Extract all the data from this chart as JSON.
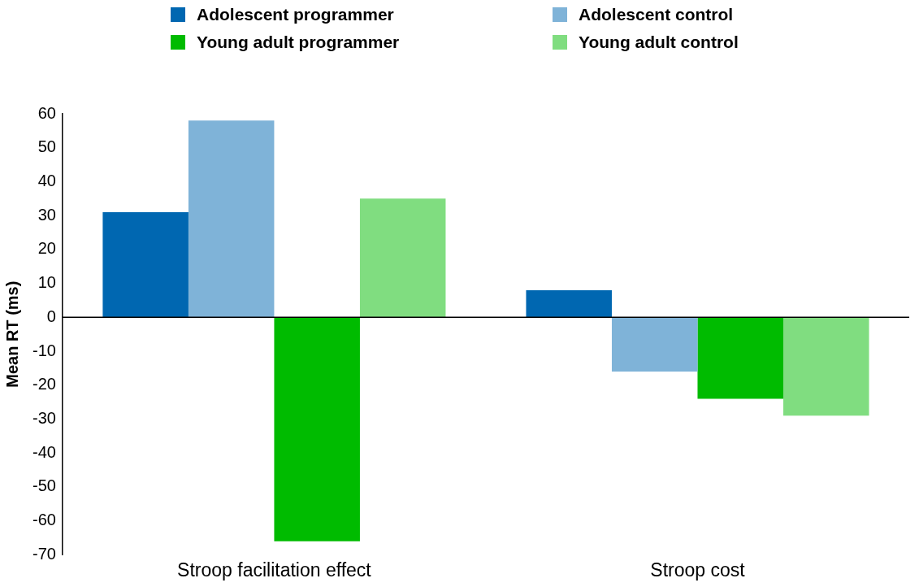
{
  "chart_data": {
    "type": "bar",
    "ylabel": "Mean RT (ms)",
    "categories": [
      "Stroop facilitation effect",
      "Stroop cost"
    ],
    "series": [
      {
        "name": "Adolescent programmer",
        "color": "#0067b1",
        "values": [
          31,
          8
        ]
      },
      {
        "name": "Adolescent control",
        "color": "#7fb3d8",
        "values": [
          58,
          -16
        ]
      },
      {
        "name": "Young adult programmer",
        "color": "#00bb00",
        "values": [
          -66,
          -24
        ]
      },
      {
        "name": "Young adult control",
        "color": "#80dd80",
        "values": [
          35,
          -29
        ]
      }
    ],
    "ylim": [
      -70,
      60
    ],
    "yticks": [
      -70,
      -60,
      -50,
      -40,
      -30,
      -20,
      -10,
      0,
      10,
      20,
      30,
      40,
      50,
      60
    ],
    "grid": false,
    "legend": "top",
    "ref_lines": [
      {
        "axis": "y",
        "value": 0,
        "color": "#000000"
      }
    ]
  }
}
